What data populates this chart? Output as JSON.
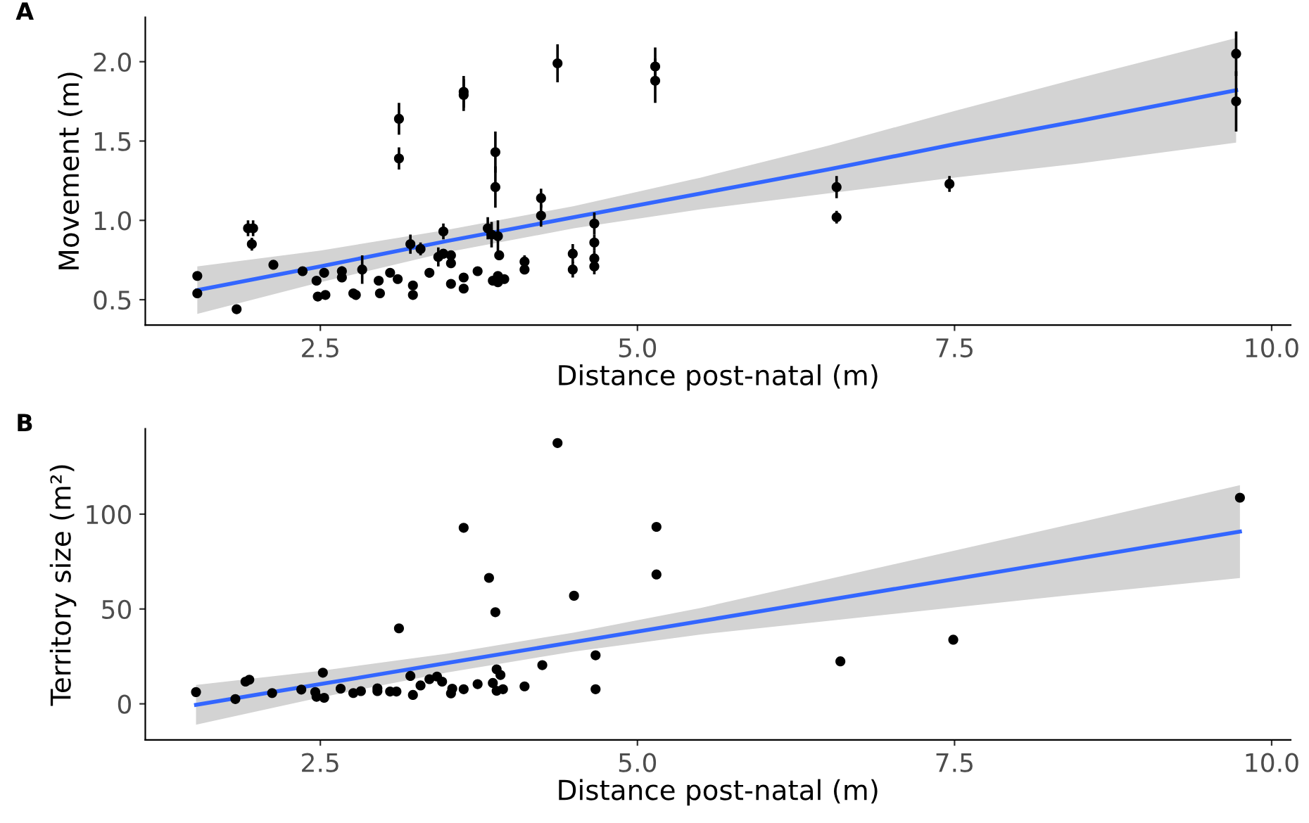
{
  "chart_data": [
    {
      "type": "scatter",
      "title": "A",
      "xlabel": "Distance post-natal (m)",
      "ylabel": "Movement (m)",
      "xlim": [
        1.12,
        10.15
      ],
      "xticks": [
        {
          "value": 2.5,
          "label": "2.5"
        },
        {
          "value": 5,
          "label": "5.0"
        },
        {
          "value": 7.5,
          "label": "7.5"
        },
        {
          "value": 10,
          "label": "10.0"
        }
      ],
      "ylim": [
        0.34,
        2.28
      ],
      "yticks": [
        0.5,
        {
          "value": 1,
          "label": "1.0"
        },
        1.5,
        {
          "value": 2,
          "label": "2.0"
        }
      ],
      "grid": false,
      "series": [
        {
          "marker": "circle",
          "color": "#000000",
          "x": [
            1.53,
            1.53,
            1.84,
            1.93,
            1.97,
            1.96,
            2.13,
            2.36,
            2.47,
            2.48,
            2.53,
            2.54,
            2.67,
            2.67,
            2.76,
            2.78,
            2.83,
            2.96,
            2.97,
            3.05,
            3.11,
            3.12,
            3.12,
            3.21,
            3.23,
            3.23,
            3.29,
            3.36,
            3.43,
            3.47,
            3.47,
            3.53,
            3.53,
            3.53,
            3.63,
            3.63,
            3.63,
            3.63,
            3.74,
            3.82,
            3.88,
            3.88,
            3.85,
            3.9,
            3.91,
            3.86,
            3.9,
            3.9,
            3.95,
            4.11,
            4.11,
            4.24,
            4.24,
            4.37,
            4.49,
            4.49,
            4.66,
            4.66,
            4.66,
            4.66,
            5.14,
            5.14,
            6.57,
            6.57,
            7.46,
            9.72,
            9.72
          ],
          "values": [
            0.65,
            0.54,
            0.44,
            0.95,
            0.95,
            0.85,
            0.72,
            0.68,
            0.62,
            0.52,
            0.67,
            0.53,
            0.68,
            0.64,
            0.54,
            0.53,
            0.69,
            0.62,
            0.54,
            0.67,
            0.63,
            1.64,
            1.39,
            0.85,
            0.59,
            0.53,
            0.82,
            0.67,
            0.77,
            0.93,
            0.79,
            0.78,
            0.73,
            0.6,
            1.81,
            1.79,
            0.64,
            0.57,
            0.68,
            0.95,
            1.43,
            1.21,
            0.91,
            0.9,
            0.78,
            0.62,
            0.65,
            0.61,
            0.63,
            0.74,
            0.69,
            1.14,
            1.03,
            1.99,
            0.79,
            0.69,
            0.98,
            0.86,
            0.76,
            0.71,
            1.97,
            1.88,
            1.21,
            1.02,
            1.23,
            2.05,
            1.75
          ],
          "errors": [
            0.02,
            0.02,
            0.02,
            0.05,
            0.05,
            0.04,
            0.02,
            0.02,
            0.02,
            0.02,
            0.03,
            0.02,
            0.03,
            0.02,
            0.02,
            0.02,
            0.09,
            0.02,
            0.02,
            0.02,
            0.02,
            0.1,
            0.07,
            0.06,
            0.02,
            0.02,
            0.04,
            0.03,
            0.06,
            0.05,
            0.03,
            0.03,
            0.03,
            0.02,
            0.1,
            0.1,
            0.02,
            0.02,
            0.02,
            0.07,
            0.13,
            0.13,
            0.08,
            0.1,
            0.03,
            0.02,
            0.02,
            0.02,
            0.02,
            0.04,
            0.03,
            0.06,
            0.07,
            0.12,
            0.06,
            0.05,
            0.07,
            0.05,
            0.05,
            0.05,
            0.12,
            0.14,
            0.07,
            0.04,
            0.05,
            0.14,
            0.19
          ]
        },
        {
          "type": "line",
          "color": "#3366ff",
          "x": [
            1.53,
            2.5,
            3.5,
            4.5,
            5.5,
            6.5,
            7.5,
            8.5,
            9.72
          ],
          "values": [
            0.56,
            0.71,
            0.87,
            1.02,
            1.17,
            1.32,
            1.48,
            1.63,
            1.82
          ],
          "lower": [
            0.41,
            0.61,
            0.8,
            0.95,
            1.07,
            1.17,
            1.27,
            1.36,
            1.49
          ],
          "upper": [
            0.71,
            0.81,
            0.94,
            1.09,
            1.27,
            1.47,
            1.69,
            1.9,
            2.15
          ]
        }
      ]
    },
    {
      "type": "scatter",
      "title": "B",
      "xlabel": "Distance post-natal (m)",
      "ylabel": "Territory size (m²)",
      "xlim": [
        1.12,
        10.15
      ],
      "xticks": [
        {
          "value": 2.5,
          "label": "2.5"
        },
        {
          "value": 5,
          "label": "5.0"
        },
        {
          "value": 7.5,
          "label": "7.5"
        },
        {
          "value": 10,
          "label": "10.0"
        }
      ],
      "ylim": [
        -19,
        145
      ],
      "yticks": [
        0,
        50,
        100
      ],
      "grid": false,
      "series": [
        {
          "marker": "circle",
          "color": "#000000",
          "x": [
            1.52,
            1.83,
            1.91,
            1.94,
            2.12,
            2.35,
            2.46,
            2.47,
            2.52,
            2.53,
            2.66,
            2.76,
            2.82,
            2.95,
            2.95,
            3.05,
            3.1,
            3.12,
            3.21,
            3.23,
            3.29,
            3.36,
            3.42,
            3.46,
            3.53,
            3.54,
            3.63,
            3.63,
            3.74,
            3.83,
            3.86,
            3.88,
            3.89,
            3.92,
            3.89,
            3.94,
            4.11,
            4.25,
            4.37,
            4.5,
            4.67,
            4.67,
            5.15,
            5.15,
            6.6,
            7.49,
            9.75
          ],
          "values": [
            6.2,
            2.5,
            11.7,
            12.7,
            5.7,
            7.5,
            6.2,
            3.7,
            16.4,
            3.2,
            8.0,
            5.7,
            6.7,
            8.2,
            6.7,
            6.5,
            6.5,
            39.8,
            14.7,
            4.7,
            9.7,
            13.0,
            14.4,
            11.7,
            5.5,
            8.0,
            92.8,
            7.7,
            10.4,
            66.4,
            11.0,
            48.3,
            18.2,
            15.2,
            6.9,
            7.7,
            9.2,
            20.4,
            137.5,
            57.0,
            25.6,
            7.7,
            93.3,
            68.2,
            22.4,
            33.8,
            108.7
          ]
        },
        {
          "type": "line",
          "color": "#3366ff",
          "x": [
            1.52,
            2.5,
            3.5,
            4.5,
            5.5,
            6.5,
            7.5,
            8.5,
            9.75
          ],
          "values": [
            -0.5,
            10.4,
            21.5,
            32.6,
            43.6,
            54.7,
            65.8,
            76.9,
            90.8
          ],
          "lower": [
            -11.0,
            3.4,
            16.5,
            27.6,
            36.6,
            43.7,
            50.8,
            57.9,
            66.3
          ],
          "upper": [
            10.0,
            17.4,
            26.5,
            37.6,
            50.6,
            65.7,
            80.8,
            95.9,
            115.3
          ]
        }
      ]
    }
  ]
}
